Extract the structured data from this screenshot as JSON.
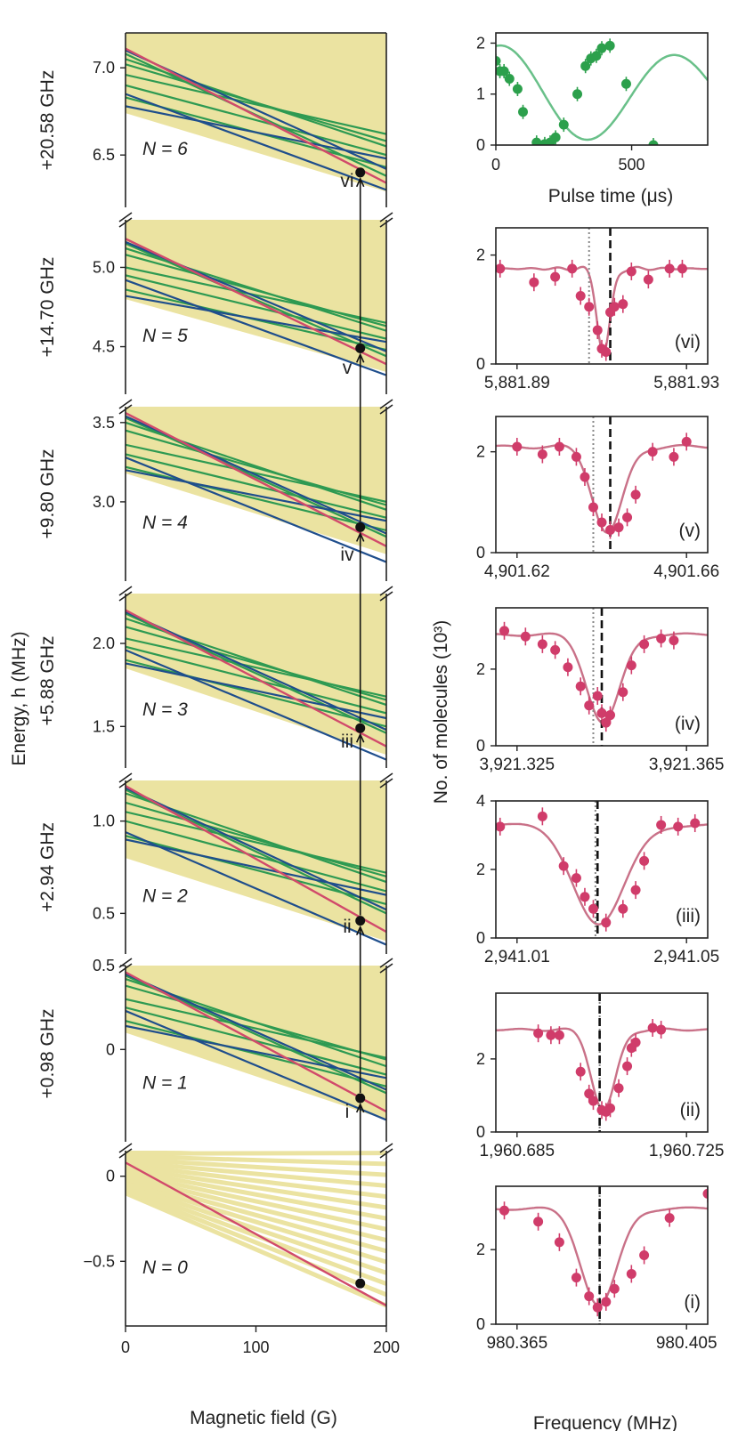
{
  "chart_data": {
    "left": {
      "type": "line",
      "title": "",
      "xlabel": "Magnetic field (G)",
      "ylabel": "Energy, h (MHz)",
      "xlim": [
        0,
        200
      ],
      "xticks": [
        "0",
        "100",
        "200"
      ],
      "marker_field": 180,
      "colors": {
        "background": "#ebe3a1",
        "green": "#2e9a52",
        "blue": "#1f4e8c",
        "red": "#d14a6b",
        "marker": "#111111"
      },
      "panels": [
        {
          "offset_label": "+20.58 GHz",
          "n_label": "N = 6",
          "transition_label": "",
          "ylim": [
            6.2,
            7.2
          ],
          "yticks": [
            {
              "v": 6.5,
              "t": "6.5"
            },
            {
              "v": 7.0,
              "t": "7.0"
            }
          ],
          "red_start": 7.11,
          "red_end": 6.34,
          "state": 6.4,
          "band": [
            6.74,
            7.2
          ],
          "green_lines": [
            [
              6.96,
              6.62
            ],
            [
              6.9,
              6.5
            ],
            [
              7.05,
              6.55
            ],
            [
              7.02,
              6.58
            ],
            [
              6.83,
              6.43
            ],
            [
              7.08,
              6.38
            ]
          ],
          "blue_lines": [
            [
              6.85,
              6.3
            ],
            [
              7.1,
              6.42
            ],
            [
              6.78,
              6.48
            ]
          ]
        },
        {
          "offset_label": "+14.70 GHz",
          "n_label": "N = 5",
          "transition_label": "vi",
          "ylim": [
            4.2,
            5.3
          ],
          "yticks": [
            {
              "v": 4.5,
              "t": "4.5"
            },
            {
              "v": 5.0,
              "t": "5.0"
            }
          ],
          "red_start": 5.18,
          "red_end": 4.39,
          "state": 4.49,
          "band": [
            4.8,
            5.3
          ],
          "green_lines": [
            [
              5.0,
              4.65
            ],
            [
              4.95,
              4.55
            ],
            [
              5.12,
              4.6
            ],
            [
              5.08,
              4.63
            ],
            [
              4.86,
              4.48
            ],
            [
              5.15,
              4.44
            ]
          ],
          "blue_lines": [
            [
              4.92,
              4.32
            ],
            [
              5.16,
              4.47
            ],
            [
              4.82,
              4.53
            ]
          ]
        },
        {
          "offset_label": "+9.80 GHz",
          "n_label": "N = 4",
          "transition_label": "v",
          "ylim": [
            2.5,
            3.6
          ],
          "yticks": [
            {
              "v": 3.0,
              "t": "3.0"
            },
            {
              "v": 3.5,
              "t": "3.5"
            }
          ],
          "red_start": 3.56,
          "red_end": 2.72,
          "state": 2.84,
          "band": [
            3.18,
            3.6
          ],
          "green_lines": [
            [
              3.36,
              3.0
            ],
            [
              3.3,
              2.9
            ],
            [
              3.5,
              2.95
            ],
            [
              3.45,
              2.98
            ],
            [
              3.22,
              2.82
            ],
            [
              3.53,
              2.78
            ]
          ],
          "blue_lines": [
            [
              3.28,
              2.62
            ],
            [
              3.54,
              2.8
            ],
            [
              3.2,
              2.88
            ]
          ]
        },
        {
          "offset_label": "+5.88 GHz",
          "n_label": "N = 3",
          "transition_label": "iv",
          "ylim": [
            1.25,
            2.3
          ],
          "yticks": [
            {
              "v": 1.5,
              "t": "1.5"
            },
            {
              "v": 2.0,
              "t": "2.0"
            }
          ],
          "red_start": 2.2,
          "red_end": 1.38,
          "state": 1.49,
          "band": [
            1.85,
            2.3
          ],
          "green_lines": [
            [
              2.03,
              1.68
            ],
            [
              1.98,
              1.58
            ],
            [
              2.15,
              1.63
            ],
            [
              2.1,
              1.66
            ],
            [
              1.9,
              1.5
            ],
            [
              2.18,
              1.46
            ]
          ],
          "blue_lines": [
            [
              1.96,
              1.3
            ],
            [
              2.19,
              1.48
            ],
            [
              1.88,
              1.55
            ]
          ]
        },
        {
          "offset_label": "+2.94 GHz",
          "n_label": "N = 2",
          "transition_label": "iii",
          "ylim": [
            0.28,
            1.22
          ],
          "yticks": [
            {
              "v": 0.5,
              "t": "0.5"
            },
            {
              "v": 1.0,
              "t": "1.0"
            }
          ],
          "red_start": 1.19,
          "red_end": 0.4,
          "state": 0.46,
          "band": [
            0.8,
            1.22
          ],
          "green_lines": [
            [
              1.05,
              0.72
            ],
            [
              1.0,
              0.62
            ],
            [
              1.15,
              0.67
            ],
            [
              1.1,
              0.7
            ],
            [
              0.92,
              0.55
            ],
            [
              1.17,
              0.5
            ]
          ],
          "blue_lines": [
            [
              0.94,
              0.33
            ],
            [
              1.18,
              0.52
            ],
            [
              0.9,
              0.6
            ]
          ]
        },
        {
          "offset_label": "+0.98 GHz",
          "n_label": "N = 1",
          "transition_label": "ii",
          "ylim": [
            -0.55,
            0.5
          ],
          "yticks": [
            {
              "v": 0.0,
              "t": "0"
            },
            {
              "v": 0.5,
              "t": "0.5"
            }
          ],
          "red_start": 0.46,
          "red_end": -0.37,
          "state": -0.29,
          "band": [
            0.1,
            0.5
          ],
          "green_lines": [
            [
              0.3,
              -0.05
            ],
            [
              0.25,
              -0.15
            ],
            [
              0.42,
              -0.1
            ],
            [
              0.38,
              -0.06
            ],
            [
              0.17,
              -0.22
            ],
            [
              0.44,
              -0.26
            ]
          ],
          "blue_lines": [
            [
              0.23,
              -0.42
            ],
            [
              0.45,
              -0.24
            ],
            [
              0.14,
              -0.17
            ]
          ]
        },
        {
          "offset_label": "",
          "n_label": "N = 0",
          "transition_label": "i",
          "ylim": [
            -0.88,
            0.15
          ],
          "yticks": [
            {
              "v": -0.5,
              "t": "−0.5"
            },
            {
              "v": 0.0,
              "t": "0"
            }
          ],
          "red_start": 0.08,
          "red_end": -0.76,
          "state": -0.63,
          "band": [
            -0.1,
            0.15
          ],
          "green_lines": [],
          "blue_lines": []
        }
      ]
    },
    "right": {
      "type": "scatter",
      "ylabel": "No. of molecules (10³)",
      "colors": {
        "data": "#d03c6a",
        "fit": "#c97188",
        "rabi_data": "#2ca04c",
        "rabi_fit": "#69c089"
      },
      "rabi": {
        "xlabel": "Pulse time (μs)",
        "xlim": [
          0,
          780
        ],
        "ylim": [
          0,
          2.2
        ],
        "xticks": [
          {
            "v": 0,
            "t": "0"
          },
          {
            "v": 500,
            "t": "500"
          }
        ],
        "yticks": [
          {
            "v": 0,
            "t": "0"
          },
          {
            "v": 1,
            "t": "1"
          },
          {
            "v": 2,
            "t": "2"
          }
        ],
        "fit_period": 640,
        "x": [
          0,
          15,
          30,
          50,
          80,
          100,
          150,
          180,
          200,
          220,
          250,
          300,
          330,
          350,
          370,
          390,
          420,
          480,
          580
        ],
        "y": [
          1.65,
          1.45,
          1.45,
          1.3,
          1.1,
          0.65,
          0.05,
          0.02,
          0.05,
          0.15,
          0.4,
          1.0,
          1.55,
          1.7,
          1.75,
          1.9,
          1.95,
          1.2,
          0.0
        ]
      },
      "spectra": [
        {
          "label": "(vi)",
          "xlim": [
            5881.885,
            5881.935
          ],
          "ticks": [
            {
              "v": 5881.89,
              "t": "5,881.89"
            },
            {
              "v": 5881.93,
              "t": "5,881.93"
            }
          ],
          "ylim": [
            0,
            2.5
          ],
          "yticks": [
            {
              "v": 0,
              "t": "0"
            },
            {
              "v": 2,
              "t": "2"
            }
          ],
          "dotted": 5881.907,
          "dashed": 5881.912,
          "center": 5881.9105,
          "width": 0.0022,
          "depth": 1.55,
          "base": 1.75,
          "x": [
            5881.886,
            5881.894,
            5881.899,
            5881.903,
            5881.905,
            5881.907,
            5881.909,
            5881.91,
            5881.911,
            5881.912,
            5881.913,
            5881.915,
            5881.917,
            5881.921,
            5881.926,
            5881.929
          ],
          "y": [
            1.75,
            1.5,
            1.6,
            1.75,
            1.25,
            1.05,
            0.62,
            0.28,
            0.22,
            0.95,
            1.05,
            1.1,
            1.7,
            1.55,
            1.75,
            1.75
          ]
        },
        {
          "label": "(v)",
          "xlim": [
            4901.615,
            4901.665
          ],
          "ticks": [
            {
              "v": 4901.62,
              "t": "4,901.62"
            },
            {
              "v": 4901.66,
              "t": "4,901.66"
            }
          ],
          "ylim": [
            0,
            2.7
          ],
          "yticks": [
            {
              "v": 0,
              "t": "0"
            },
            {
              "v": 2,
              "t": "2"
            }
          ],
          "dotted": 4901.638,
          "dashed": 4901.642,
          "center": 4901.6415,
          "width": 0.005,
          "depth": 1.7,
          "base": 2.1,
          "x": [
            4901.62,
            4901.626,
            4901.63,
            4901.634,
            4901.636,
            4901.638,
            4901.64,
            4901.642,
            4901.644,
            4901.646,
            4901.648,
            4901.652,
            4901.657,
            4901.66
          ],
          "y": [
            2.1,
            1.95,
            2.1,
            1.9,
            1.5,
            0.9,
            0.6,
            0.45,
            0.5,
            0.7,
            1.15,
            2.0,
            1.9,
            2.2
          ]
        },
        {
          "label": "(iv)",
          "xlim": [
            3921.32,
            3921.37
          ],
          "ticks": [
            {
              "v": 3921.325,
              "t": "3,921.325"
            },
            {
              "v": 3921.365,
              "t": "3,921.365"
            }
          ],
          "ylim": [
            0,
            3.6
          ],
          "yticks": [
            {
              "v": 0,
              "t": "0"
            },
            {
              "v": 2,
              "t": "2"
            }
          ],
          "dotted": 3921.343,
          "dashed": 3921.345,
          "center": 3921.3455,
          "width": 0.0055,
          "depth": 2.3,
          "base": 2.9,
          "x": [
            3921.322,
            3921.327,
            3921.331,
            3921.334,
            3921.337,
            3921.34,
            3921.342,
            3921.344,
            3921.345,
            3921.346,
            3921.347,
            3921.35,
            3921.352,
            3921.355,
            3921.359,
            3921.362
          ],
          "y": [
            3.0,
            2.85,
            2.65,
            2.5,
            2.05,
            1.55,
            1.05,
            1.3,
            0.85,
            0.6,
            0.8,
            1.4,
            2.1,
            2.65,
            2.8,
            2.75
          ]
        },
        {
          "label": "(iii)",
          "xlim": [
            2941.005,
            2941.055
          ],
          "ticks": [
            {
              "v": 2941.01,
              "t": "2,941.01"
            },
            {
              "v": 2941.05,
              "t": "2,941.05"
            }
          ],
          "ylim": [
            0,
            4.0
          ],
          "yticks": [
            {
              "v": 0,
              "t": "0"
            },
            {
              "v": 2,
              "t": "2"
            },
            {
              "v": 4,
              "t": "4"
            }
          ],
          "dotted": 2941.0285,
          "dashed": 2941.029,
          "center": 2941.0295,
          "width": 0.0085,
          "depth": 2.9,
          "base": 3.3,
          "x": [
            2941.006,
            2941.016,
            2941.021,
            2941.024,
            2941.026,
            2941.028,
            2941.031,
            2941.035,
            2941.038,
            2941.04,
            2941.044,
            2941.048,
            2941.052
          ],
          "y": [
            3.25,
            3.55,
            2.1,
            1.75,
            1.2,
            0.85,
            0.45,
            0.85,
            1.4,
            2.25,
            3.3,
            3.25,
            3.35
          ]
        },
        {
          "label": "(ii)",
          "xlim": [
            1960.68,
            1960.73
          ],
          "ticks": [
            {
              "v": 1960.685,
              "t": "1,960.685"
            },
            {
              "v": 1960.725,
              "t": "1,960.725"
            }
          ],
          "ylim": [
            0,
            3.8
          ],
          "yticks": [
            {
              "v": 0,
              "t": "0"
            },
            {
              "v": 2,
              "t": "2"
            }
          ],
          "dotted": 1960.7045,
          "dashed": 1960.7045,
          "center": 1960.7055,
          "width": 0.004,
          "depth": 2.2,
          "base": 2.8,
          "x": [
            1960.69,
            1960.693,
            1960.695,
            1960.7,
            1960.702,
            1960.703,
            1960.705,
            1960.706,
            1960.707,
            1960.709,
            1960.711,
            1960.712,
            1960.713,
            1960.717,
            1960.719
          ],
          "y": [
            2.7,
            2.65,
            2.65,
            1.65,
            1.05,
            0.85,
            0.6,
            0.55,
            0.65,
            1.2,
            1.8,
            2.3,
            2.45,
            2.85,
            2.8
          ]
        },
        {
          "label": "(i)",
          "xlim": [
            980.36,
            980.41
          ],
          "ticks": [
            {
              "v": 980.365,
              "t": "980.365"
            },
            {
              "v": 980.405,
              "t": "980.405"
            }
          ],
          "ylim": [
            0,
            3.7
          ],
          "yticks": [
            {
              "v": 0,
              "t": "0"
            },
            {
              "v": 2,
              "t": "2"
            }
          ],
          "dotted": 980.3845,
          "dashed": 980.3845,
          "center": 980.3845,
          "width": 0.006,
          "depth": 2.6,
          "base": 3.1,
          "x": [
            980.362,
            980.37,
            980.375,
            980.379,
            980.382,
            980.384,
            980.386,
            980.388,
            980.392,
            980.395,
            980.401,
            980.41
          ],
          "y": [
            3.05,
            2.75,
            2.2,
            1.25,
            0.75,
            0.45,
            0.6,
            0.95,
            1.35,
            1.85,
            2.85,
            3.5
          ]
        }
      ],
      "xlabel": "Frequency (MHz)"
    }
  }
}
